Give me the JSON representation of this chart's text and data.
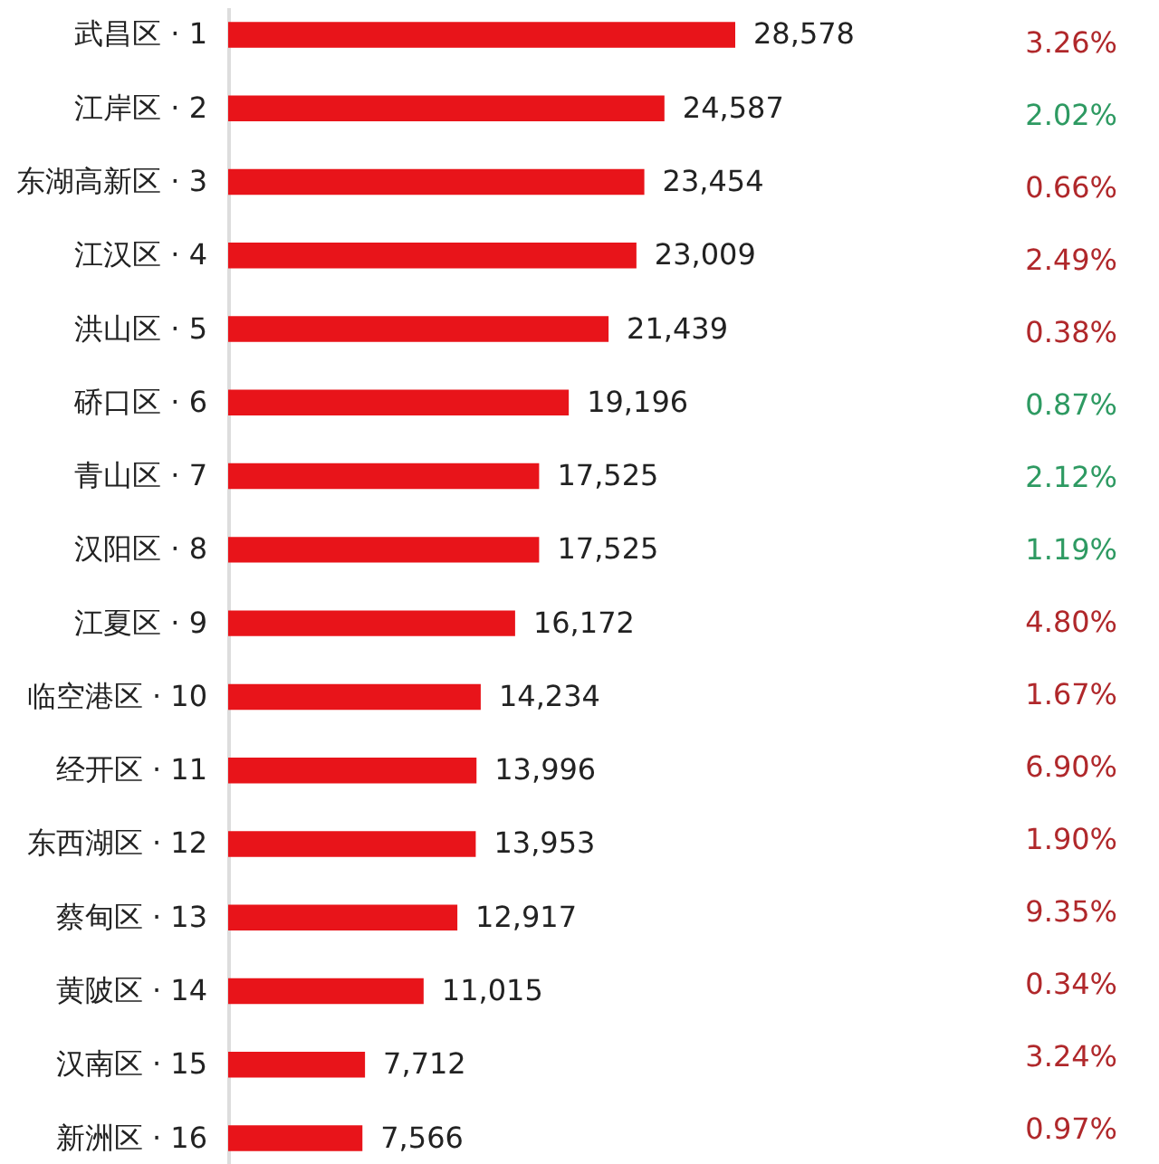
{
  "chart_data": [
    {
      "type": "bar",
      "orientation": "horizontal",
      "color": "#e8141a",
      "value_labels": [
        "28,578",
        "24,587",
        "23,454",
        "23,009",
        "21,439",
        "19,196",
        "17,525",
        "17,525",
        "16,172",
        "14,234",
        "13,996",
        "13,953",
        "12,917",
        "11,015",
        "7,712",
        "7,566"
      ],
      "categories": [
        "武昌区 · 1",
        "江岸区 · 2",
        "东湖高新区 · 3",
        "江汉区 · 4",
        "洪山区 · 5",
        "硚口区 · 6",
        "青山区 · 7",
        "汉阳区 · 8",
        "江夏区 · 9",
        "临空港区 · 10",
        "经开区 · 11",
        "东西湖区 · 12",
        "蔡甸区 · 13",
        "黄陂区 · 14",
        "汉南区 · 15",
        "新洲区 · 16"
      ],
      "values": [
        28578,
        24587,
        23454,
        23009,
        21439,
        19196,
        17525,
        17525,
        16172,
        14234,
        13996,
        13953,
        12917,
        11015,
        7712,
        7566
      ]
    },
    {
      "type": "other",
      "categories": [
        null,
        null,
        null,
        null,
        null,
        null,
        null,
        null,
        null,
        null,
        null,
        null,
        null,
        null,
        null,
        null
      ],
      "values": [
        3.26,
        2.02,
        0.66,
        2.49,
        0.38,
        0.87,
        2.12,
        1.19,
        4.8,
        1.67,
        6.9,
        1.9,
        9.35,
        0.34,
        3.24,
        0.97
      ],
      "value_labels": [
        "3.26%",
        "2.02%",
        "0.66%",
        "2.49%",
        "0.38%",
        "0.87%",
        "2.12%",
        "1.19%",
        "4.80%",
        "1.67%",
        "6.90%",
        "1.90%",
        "9.35%",
        "0.34%",
        "3.24%",
        "0.97%"
      ],
      "colors": [
        "#b0282b",
        "#2e9a62",
        "#b0282b",
        "#b0282b",
        "#b0282b",
        "#2e9a62",
        "#2e9a62",
        "#2e9a62",
        "#b0282b",
        "#b0282b",
        "#b0282b",
        "#b0282b",
        "#b0282b",
        "#b0282b",
        "#b0282b",
        "#b0282b"
      ]
    }
  ]
}
